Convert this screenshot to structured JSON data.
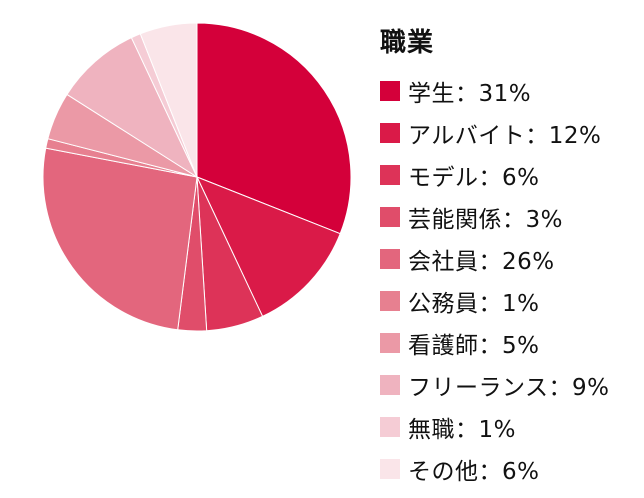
{
  "chart_data": {
    "type": "pie",
    "legend_title": "職業",
    "legend_position": "right",
    "start_angle": "top",
    "direction": "clockwise",
    "slices": [
      {
        "label": "学生",
        "value": 31,
        "display": "学生：31%",
        "color": "#d4003a"
      },
      {
        "label": "アルバイト",
        "value": 12,
        "display": "アルバイト：12%",
        "color": "#da1a48"
      },
      {
        "label": "モデル",
        "value": 6,
        "display": "モデル：6%",
        "color": "#dd3358"
      },
      {
        "label": "芸能関係",
        "value": 3,
        "display": "芸能関係：3%",
        "color": "#e04d6a"
      },
      {
        "label": "会社員",
        "value": 26,
        "display": "会社員：26%",
        "color": "#e3667d"
      },
      {
        "label": "公務員",
        "value": 1,
        "display": "公務員：1%",
        "color": "#e78090"
      },
      {
        "label": "看護師",
        "value": 5,
        "display": "看護師：5%",
        "color": "#eb99a6"
      },
      {
        "label": "フリーランス",
        "value": 9,
        "display": "フリーランス：9%",
        "color": "#efb3bf"
      },
      {
        "label": "無職",
        "value": 1,
        "display": "無職：1%",
        "color": "#f5ccd5"
      },
      {
        "label": "その他",
        "value": 6,
        "display": "その他：6%",
        "color": "#fae5e9"
      }
    ]
  }
}
